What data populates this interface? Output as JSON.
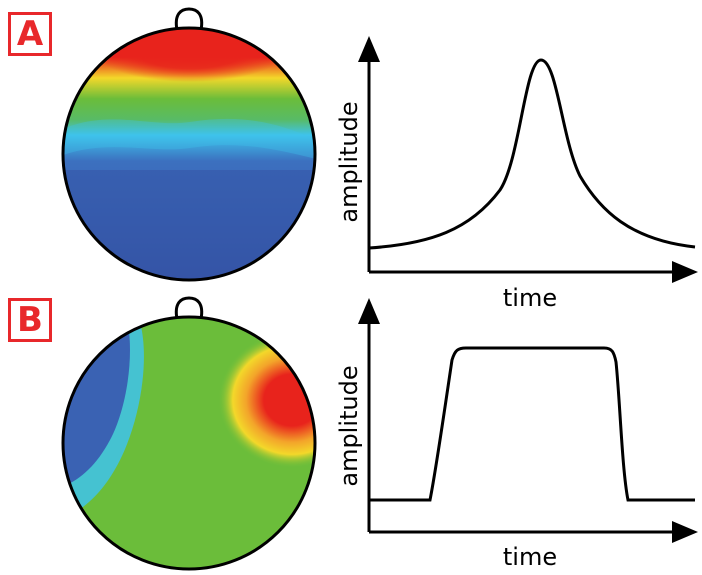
{
  "panels": [
    {
      "label": "A",
      "ylabel": "amplitude",
      "xlabel": "time",
      "waveform": "peak"
    },
    {
      "label": "B",
      "ylabel": "amplitude",
      "xlabel": "time",
      "waveform": "plateau"
    }
  ],
  "colors": {
    "label_red": "#e8282b",
    "map_red": "#e8231c",
    "map_yellow": "#f3d82a",
    "map_green": "#6bbd3a",
    "map_cyan": "#3ec3ec",
    "map_blue": "#3554a6",
    "outline": "#000000"
  }
}
